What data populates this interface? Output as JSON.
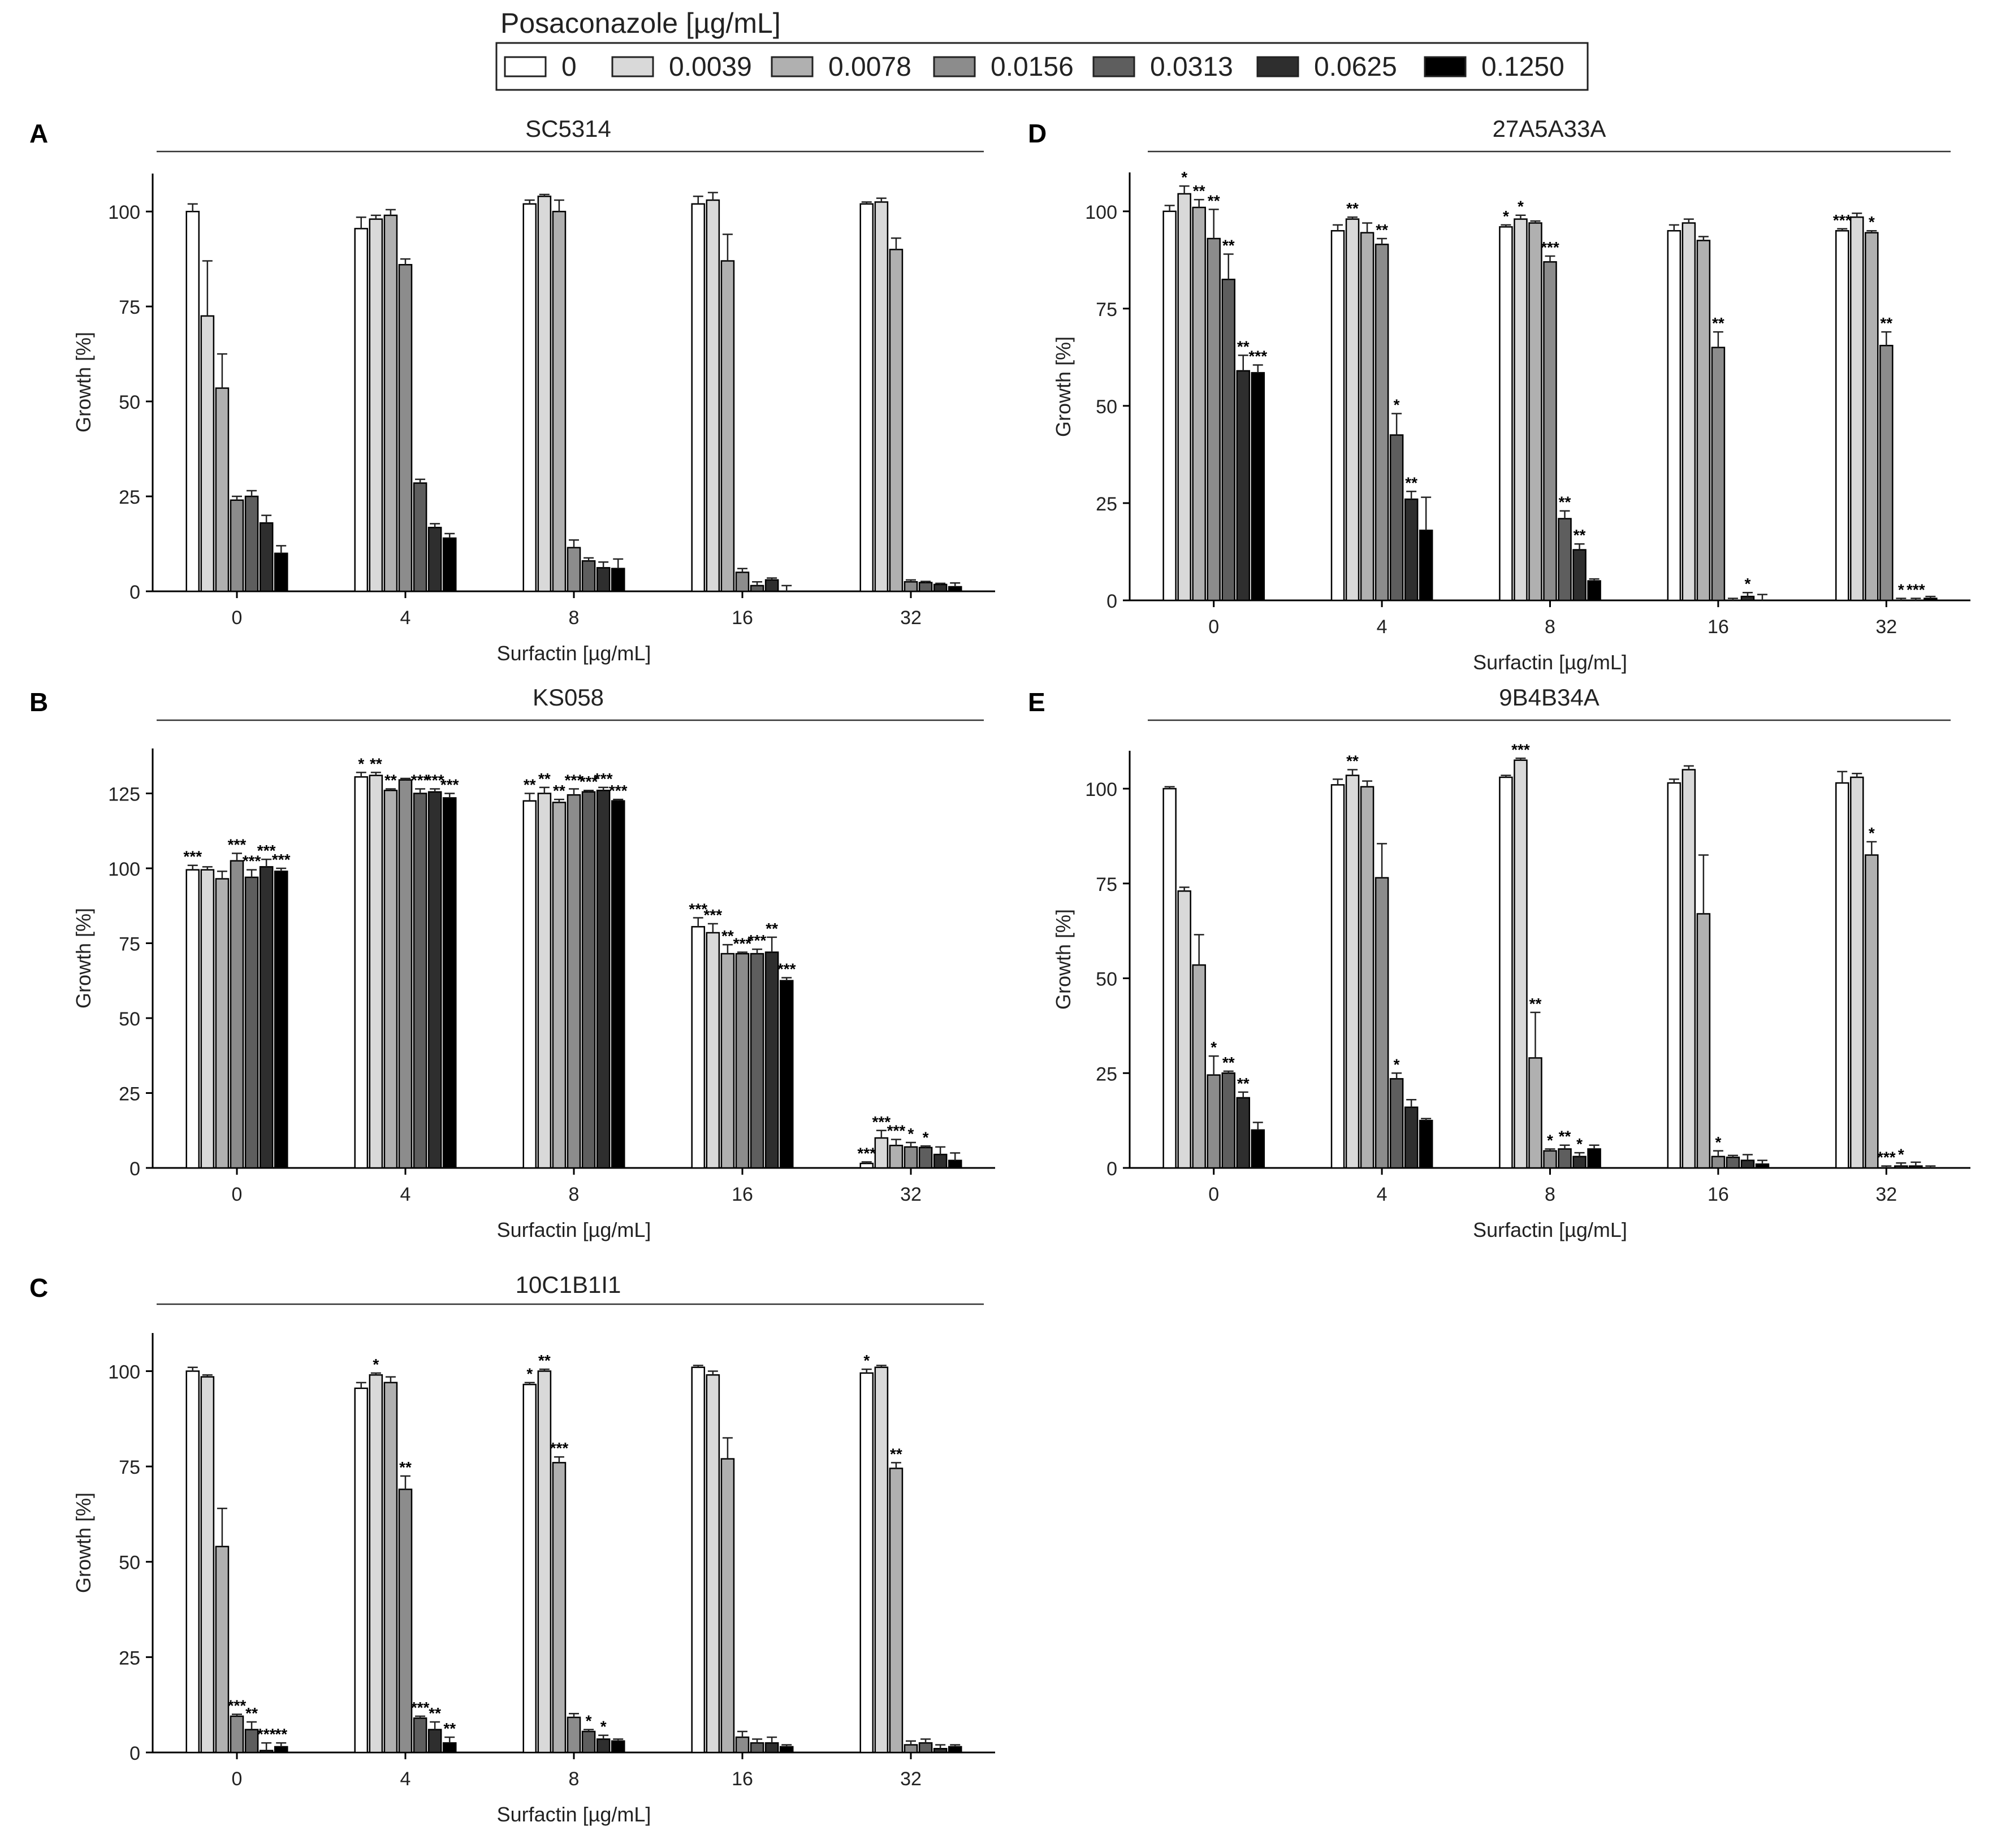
{
  "legend": {
    "title": "Posaconazole [µg/mL]",
    "labels": [
      "0",
      "0.0039",
      "0.0078",
      "0.0156",
      "0.0313",
      "0.0625",
      "0.1250"
    ],
    "colors": [
      "#ffffff",
      "#d9d9d9",
      "#b0b0b0",
      "#8c8c8c",
      "#5e5e5e",
      "#2e2e2e",
      "#000000"
    ]
  },
  "chart_data": [
    {
      "type": "bar",
      "panel": "A",
      "title": "SC5314",
      "xlabel": "Surfactin [µg/mL]",
      "ylabel": "Growth [%]",
      "categories": [
        "0",
        "4",
        "8",
        "16",
        "32"
      ],
      "ylim": [
        0,
        110
      ],
      "yticks": [
        0,
        25,
        50,
        75,
        100
      ],
      "series": [
        {
          "name": "0",
          "values": [
            100,
            95.5,
            102,
            102,
            102
          ],
          "errors": [
            2,
            3,
            1,
            2,
            0.5
          ],
          "sig": [
            "",
            "",
            "",
            "",
            ""
          ]
        },
        {
          "name": "0.0039",
          "values": [
            72.5,
            98,
            104,
            103,
            102.5
          ],
          "errors": [
            14.5,
            1,
            0.5,
            2,
            1
          ],
          "sig": [
            "",
            "",
            "",
            "",
            ""
          ]
        },
        {
          "name": "0.0078",
          "values": [
            53.5,
            99,
            100,
            87,
            90
          ],
          "errors": [
            9,
            1.5,
            3,
            7,
            3
          ],
          "sig": [
            "",
            "",
            "",
            "",
            ""
          ]
        },
        {
          "name": "0.0156",
          "values": [
            24,
            86,
            11.5,
            5,
            2.5
          ],
          "errors": [
            1,
            1.5,
            2,
            1,
            0.5
          ],
          "sig": [
            "",
            "",
            "",
            "",
            ""
          ]
        },
        {
          "name": "0.0313",
          "values": [
            25,
            28.5,
            8,
            1.5,
            2.3
          ],
          "errors": [
            1.5,
            1,
            0.8,
            1,
            0.3
          ],
          "sig": [
            "",
            "",
            "",
            "",
            ""
          ]
        },
        {
          "name": "0.0625",
          "values": [
            18,
            16.8,
            6.2,
            3,
            1.8
          ],
          "errors": [
            2,
            1,
            1.5,
            0.5,
            0.3
          ],
          "sig": [
            "",
            "",
            "",
            "",
            ""
          ]
        },
        {
          "name": "0.1250",
          "values": [
            10,
            14,
            6,
            0,
            1.2
          ],
          "errors": [
            2,
            1.2,
            2.5,
            1.5,
            1
          ],
          "sig": [
            "",
            "",
            "",
            "",
            ""
          ]
        }
      ]
    },
    {
      "type": "bar",
      "panel": "B",
      "title": "KS058",
      "xlabel": "Surfactin [µg/mL]",
      "ylabel": "Growth [%]",
      "categories": [
        "0",
        "4",
        "8",
        "16",
        "32"
      ],
      "ylim": [
        0,
        140
      ],
      "yticks": [
        0,
        25,
        50,
        75,
        100,
        125
      ],
      "series": [
        {
          "name": "0",
          "values": [
            99.5,
            130.5,
            122.5,
            80.5,
            1.5
          ],
          "errors": [
            1.5,
            1.5,
            2.5,
            3,
            0.5
          ],
          "sig": [
            "***",
            "*",
            "**",
            "***",
            "***"
          ]
        },
        {
          "name": "0.0039",
          "values": [
            99.5,
            131,
            125,
            78.5,
            10
          ],
          "errors": [
            1,
            1,
            2,
            3,
            2.5
          ],
          "sig": [
            "",
            "**",
            "**",
            "***",
            "***"
          ]
        },
        {
          "name": "0.0078",
          "values": [
            96.5,
            126,
            122,
            71.5,
            7.5
          ],
          "errors": [
            2.5,
            0.5,
            1,
            3,
            2
          ],
          "sig": [
            "",
            "**",
            "**",
            "**",
            "***"
          ]
        },
        {
          "name": "0.0156",
          "values": [
            102.5,
            129.5,
            124.5,
            71.5,
            7
          ],
          "errors": [
            2.5,
            0.5,
            2,
            0.5,
            1.5
          ],
          "sig": [
            "***",
            "",
            "***",
            "***",
            "*"
          ]
        },
        {
          "name": "0.0313",
          "values": [
            97,
            125,
            125.5,
            71.5,
            6.8
          ],
          "errors": [
            2.5,
            1.5,
            0.5,
            1.5,
            0.5
          ],
          "sig": [
            "***",
            "***",
            "***",
            "***",
            "*"
          ]
        },
        {
          "name": "0.0625",
          "values": [
            100.5,
            125.5,
            126,
            72,
            4.5
          ],
          "errors": [
            2.5,
            1,
            1,
            5,
            2.5
          ],
          "sig": [
            "***",
            "***",
            "***",
            "**",
            ""
          ]
        },
        {
          "name": "0.1250",
          "values": [
            99,
            123.5,
            122.5,
            62.5,
            2.5
          ],
          "errors": [
            1,
            1.5,
            0.5,
            1,
            2.5
          ],
          "sig": [
            "***",
            "***",
            "***",
            "***",
            ""
          ]
        }
      ]
    },
    {
      "type": "bar",
      "panel": "C",
      "title": "10C1B1I1",
      "xlabel": "Surfactin [µg/mL]",
      "ylabel": "Growth [%]",
      "categories": [
        "0",
        "4",
        "8",
        "16",
        "32"
      ],
      "ylim": [
        0,
        110
      ],
      "yticks": [
        0,
        25,
        50,
        75,
        100
      ],
      "series": [
        {
          "name": "0",
          "values": [
            100,
            95.5,
            96.5,
            101,
            99.5
          ],
          "errors": [
            1,
            1.5,
            0.5,
            0.5,
            1
          ],
          "sig": [
            "",
            "",
            "*",
            "",
            "*"
          ]
        },
        {
          "name": "0.0039",
          "values": [
            98.5,
            99,
            100,
            99,
            101
          ],
          "errors": [
            0.5,
            0.5,
            0.5,
            1,
            0.5
          ],
          "sig": [
            "",
            "*",
            "**",
            "",
            ""
          ]
        },
        {
          "name": "0.0078",
          "values": [
            54,
            97,
            76,
            77,
            74.5
          ],
          "errors": [
            10,
            1.5,
            1.5,
            5.5,
            1.5
          ],
          "sig": [
            "",
            "",
            "***",
            "",
            "**"
          ]
        },
        {
          "name": "0.0156",
          "values": [
            9.5,
            69,
            9.2,
            4,
            2
          ],
          "errors": [
            0.5,
            3.5,
            1,
            1.5,
            1
          ],
          "sig": [
            "***",
            "**",
            "",
            "",
            ""
          ]
        },
        {
          "name": "0.0313",
          "values": [
            6,
            9,
            5.5,
            2.5,
            2.5
          ],
          "errors": [
            2,
            0.5,
            0.5,
            1,
            1
          ],
          "sig": [
            "**",
            "***",
            "*",
            "",
            ""
          ]
        },
        {
          "name": "0.0625",
          "values": [
            0.5,
            6,
            3.5,
            2.5,
            1
          ],
          "errors": [
            2,
            2,
            1,
            1.5,
            1
          ],
          "sig": [
            "***",
            "**",
            "*",
            "",
            ""
          ]
        },
        {
          "name": "0.1250",
          "values": [
            1.5,
            2.5,
            3,
            1.5,
            1.5
          ],
          "errors": [
            1,
            1.5,
            0.5,
            0.5,
            0.5
          ],
          "sig": [
            "**",
            "**",
            "",
            "",
            ""
          ]
        }
      ]
    },
    {
      "type": "bar",
      "panel": "D",
      "title": "27A5A33A",
      "xlabel": "Surfactin [µg/mL]",
      "ylabel": "Growth [%]",
      "categories": [
        "0",
        "4",
        "8",
        "16",
        "32"
      ],
      "ylim": [
        0,
        110
      ],
      "yticks": [
        0,
        25,
        50,
        75,
        100
      ],
      "series": [
        {
          "name": "0",
          "values": [
            100,
            95,
            96,
            95,
            95
          ],
          "errors": [
            1.5,
            1.5,
            0.5,
            1.5,
            0.5
          ],
          "sig": [
            "",
            "",
            "*",
            "",
            "***"
          ]
        },
        {
          "name": "0.0039",
          "values": [
            104.5,
            98,
            98,
            97,
            98.5
          ],
          "errors": [
            2,
            0.5,
            1,
            1,
            1
          ],
          "sig": [
            "*",
            "**",
            "*",
            "",
            ""
          ]
        },
        {
          "name": "0.0078",
          "values": [
            101,
            94.5,
            97,
            92.5,
            94.5
          ],
          "errors": [
            2,
            2.5,
            0.5,
            1,
            0.5
          ],
          "sig": [
            "**",
            "",
            "",
            "",
            "*"
          ]
        },
        {
          "name": "0.0156",
          "values": [
            93,
            91.5,
            87,
            65,
            65.5
          ],
          "errors": [
            7.5,
            1.5,
            1.5,
            4,
            3.5
          ],
          "sig": [
            "**",
            "**",
            "***",
            "**",
            "**"
          ]
        },
        {
          "name": "0.0313",
          "values": [
            82.5,
            42.5,
            21,
            0,
            0
          ],
          "errors": [
            6.5,
            5.5,
            2,
            0.5,
            0.5
          ],
          "sig": [
            "**",
            "*",
            "**",
            "",
            "*"
          ]
        },
        {
          "name": "0.0625",
          "values": [
            59,
            26,
            13,
            1,
            0
          ],
          "errors": [
            4,
            2,
            1.5,
            1,
            0.5
          ],
          "sig": [
            "**",
            "**",
            "**",
            "*",
            "***"
          ]
        },
        {
          "name": "0.1250",
          "values": [
            58.5,
            18,
            5,
            0,
            0.5
          ],
          "errors": [
            2,
            8.5,
            0.5,
            1.5,
            0.5
          ],
          "sig": [
            "***",
            "",
            "",
            "",
            ""
          ]
        }
      ]
    },
    {
      "type": "bar",
      "panel": "E",
      "title": "9B4B34A",
      "xlabel": "Surfactin [µg/mL]",
      "ylabel": "Growth [%]",
      "categories": [
        "0",
        "4",
        "8",
        "16",
        "32"
      ],
      "ylim": [
        0,
        110
      ],
      "yticks": [
        0,
        25,
        50,
        75,
        100
      ],
      "series": [
        {
          "name": "0",
          "values": [
            100,
            101,
            103,
            101.5,
            101.5
          ],
          "errors": [
            0.5,
            1.5,
            0.5,
            1,
            3
          ],
          "sig": [
            "",
            "",
            "",
            "",
            ""
          ]
        },
        {
          "name": "0.0039",
          "values": [
            73,
            103.5,
            107.5,
            105,
            103
          ],
          "errors": [
            1,
            1.5,
            0.5,
            1,
            1
          ],
          "sig": [
            "",
            "**",
            "***",
            "",
            ""
          ]
        },
        {
          "name": "0.0078",
          "values": [
            53.5,
            100.5,
            29,
            67,
            82.5
          ],
          "errors": [
            8,
            1.5,
            12,
            15.5,
            3.5
          ],
          "sig": [
            "",
            "",
            "**",
            "",
            "*"
          ]
        },
        {
          "name": "0.0156",
          "values": [
            24.5,
            76.5,
            4.5,
            3,
            0
          ],
          "errors": [
            5,
            9,
            0.5,
            1.5,
            0.5
          ],
          "sig": [
            "*",
            "",
            "*",
            "*",
            "***"
          ]
        },
        {
          "name": "0.0313",
          "values": [
            25,
            23.5,
            5,
            2.8,
            0.5
          ],
          "errors": [
            0.5,
            1.5,
            1,
            0.5,
            0.8
          ],
          "sig": [
            "**",
            "*",
            "**",
            "",
            "*"
          ]
        },
        {
          "name": "0.0625",
          "values": [
            18.5,
            16,
            3,
            2,
            0.5
          ],
          "errors": [
            1.5,
            2,
            1,
            1.5,
            1
          ],
          "sig": [
            "**",
            "",
            "*",
            "",
            ""
          ]
        },
        {
          "name": "0.1250",
          "values": [
            10,
            12.5,
            5,
            1,
            0
          ],
          "errors": [
            2,
            0.5,
            1,
            1,
            0.5
          ],
          "sig": [
            "",
            "",
            "",
            "",
            ""
          ]
        }
      ]
    }
  ]
}
